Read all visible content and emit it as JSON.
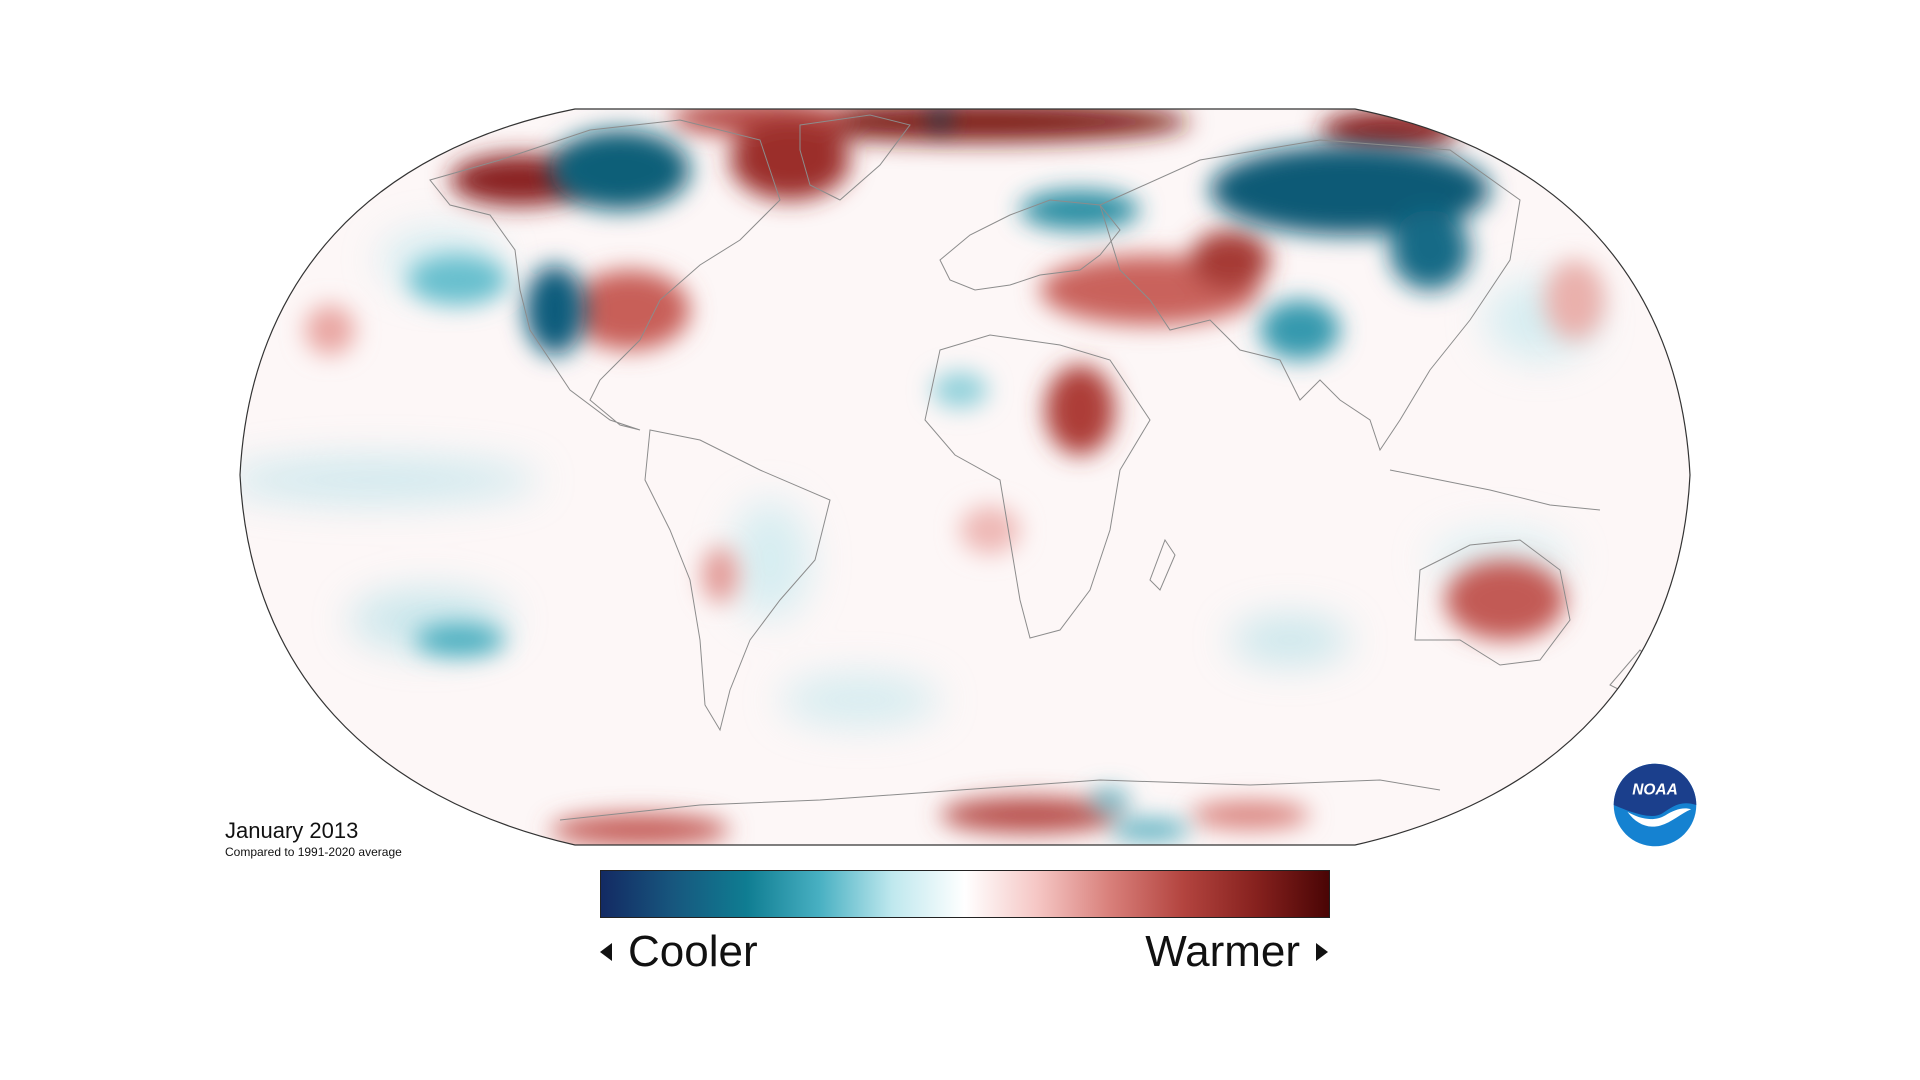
{
  "title": "January 2013",
  "subtitle": "Compared to 1991-2020 average",
  "legend": {
    "cooler_label": "Cooler",
    "warmer_label": "Warmer",
    "colors": [
      "#132a63",
      "#17577e",
      "#0f7d92",
      "#48b0c2",
      "#bfe8ee",
      "#ffffff",
      "#f5c6c4",
      "#d87f7a",
      "#b3443f",
      "#86211e",
      "#4a0505"
    ]
  },
  "logo": {
    "text": "NOAA",
    "icon": "noaa-logo-icon",
    "colors": {
      "top": "#1b3f8c",
      "bottom": "#1582d1",
      "bird": "#ffffff"
    }
  },
  "map": {
    "projection": "Robinson",
    "ocean_color": "#ffffff"
  }
}
